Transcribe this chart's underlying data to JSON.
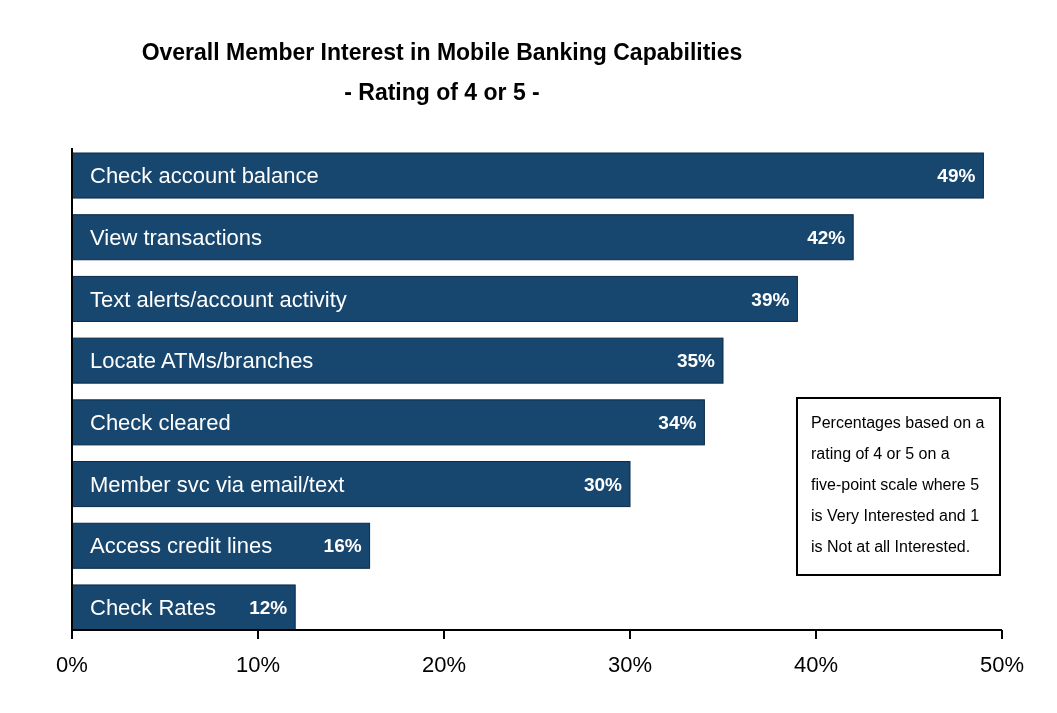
{
  "chart_data": {
    "type": "bar",
    "orientation": "horizontal",
    "title": "Overall Member Interest in Mobile Banking Capabilities",
    "subtitle": "- Rating of 4 or 5 -",
    "categories": [
      "Check account balance",
      "View transactions",
      "Text alerts/account activity",
      "Locate ATMs/branches",
      "Check cleared",
      "Member svc via email/text",
      "Access credit lines",
      "Check Rates"
    ],
    "values": [
      49,
      42,
      39,
      35,
      34,
      30,
      16,
      12
    ],
    "value_labels": [
      "49%",
      "42%",
      "39%",
      "35%",
      "34%",
      "30%",
      "16%",
      "12%"
    ],
    "color": "#17466e",
    "xlim": [
      0,
      50
    ],
    "xticks": [
      {
        "value": 0,
        "label": "0%"
      },
      {
        "value": 10,
        "label": "10%"
      },
      {
        "value": 20,
        "label": "20%"
      },
      {
        "value": 30,
        "label": "30%"
      },
      {
        "value": 40,
        "label": "40%"
      },
      {
        "value": 50,
        "label": "50%"
      }
    ],
    "annotations": [
      "Percentages based on a rating of 4 or 5 on a five-point scale where 5 is Very Interested and 1 is Not at all Interested."
    ]
  }
}
